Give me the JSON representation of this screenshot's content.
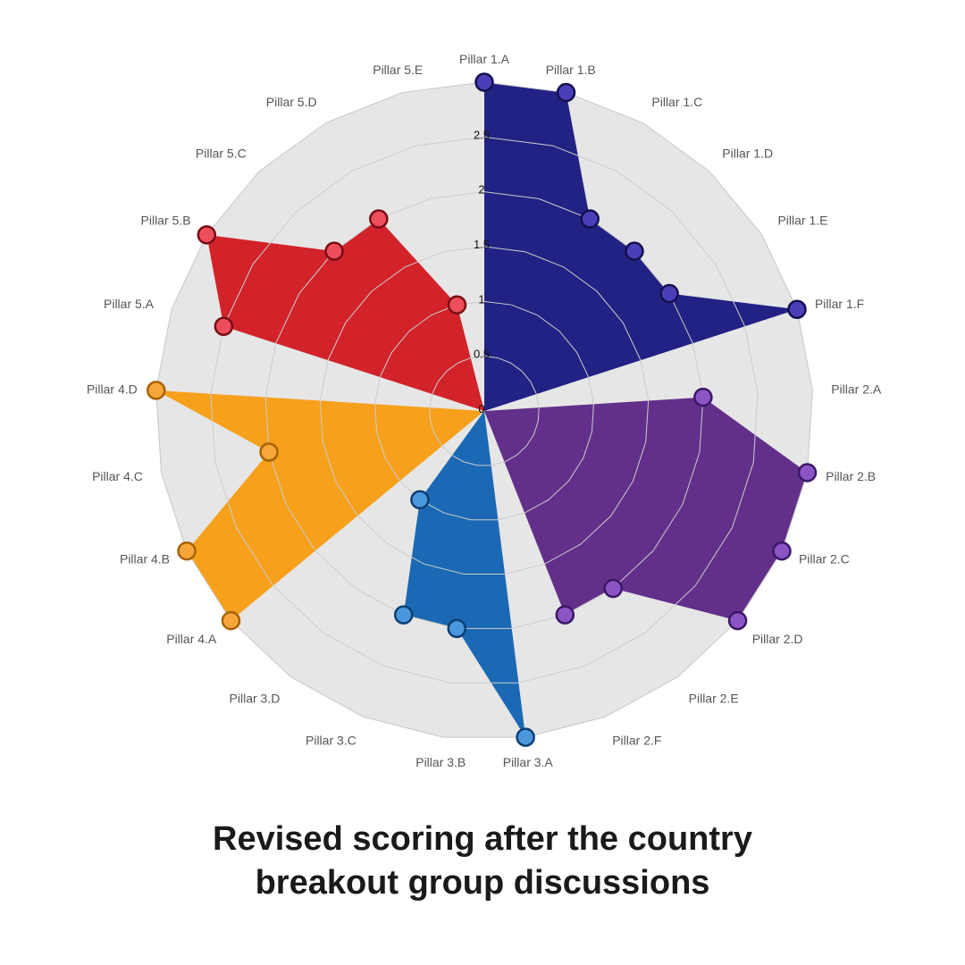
{
  "chart_data": {
    "type": "radar",
    "title": "Revised scoring after the country breakout group discussions",
    "title_lines": [
      "Revised scoring after the country",
      "breakout group discussions"
    ],
    "categories": [
      "Pillar 1.A",
      "Pillar 1.B",
      "Pillar 1.C",
      "Pillar 1.D",
      "Pillar 1.E",
      "Pillar 1.F",
      "Pillar 2.A",
      "Pillar 2.B",
      "Pillar 2.C",
      "Pillar 2.D",
      "Pillar 2.E",
      "Pillar 2.F",
      "Pillar 3.A",
      "Pillar 3.B",
      "Pillar 3.C",
      "Pillar 3.D",
      "Pillar 4.A",
      "Pillar 4.B",
      "Pillar 4.C",
      "Pillar 4.D",
      "Pillar 5.A",
      "Pillar 5.B",
      "Pillar 5.C",
      "Pillar 5.D",
      "Pillar 5.E"
    ],
    "rlim": [
      0,
      3
    ],
    "radial_ticks": [
      0,
      0.5,
      1,
      1.5,
      2,
      2.5
    ],
    "radial_tick_labels": [
      "0",
      "0.5",
      "1",
      "1.5",
      "2",
      "2.5"
    ],
    "grid": true,
    "legend": "none",
    "series": [
      {
        "color": "#222284",
        "marker_fill": "#4a3fb8",
        "marker_edge": "#14104e",
        "points": [
          {
            "category": "Pillar 1.A",
            "value": 3
          },
          {
            "category": "Pillar 1.B",
            "value": 3
          },
          {
            "category": "Pillar 1.C",
            "value": 2
          },
          {
            "category": "Pillar 1.D",
            "value": 2
          },
          {
            "category": "Pillar 1.E",
            "value": 2
          },
          {
            "category": "Pillar 1.F",
            "value": 3
          }
        ]
      },
      {
        "color": "#62308a",
        "marker_fill": "#8b55c6",
        "marker_edge": "#3a1866",
        "points": [
          {
            "category": "Pillar 2.A",
            "value": 2
          },
          {
            "category": "Pillar 2.B",
            "value": 3
          },
          {
            "category": "Pillar 2.C",
            "value": 3
          },
          {
            "category": "Pillar 2.D",
            "value": 3
          },
          {
            "category": "Pillar 2.E",
            "value": 2
          },
          {
            "category": "Pillar 2.F",
            "value": 2
          }
        ]
      },
      {
        "color": "#1b69b4",
        "marker_fill": "#4b97de",
        "marker_edge": "#0e3e72",
        "points": [
          {
            "category": "Pillar 3.A",
            "value": 3
          },
          {
            "category": "Pillar 3.B",
            "value": 2
          },
          {
            "category": "Pillar 3.C",
            "value": 2
          },
          {
            "category": "Pillar 3.D",
            "value": 1
          }
        ]
      },
      {
        "color": "#f6a01c",
        "marker_fill": "#f7a73a",
        "marker_edge": "#a86200",
        "points": [
          {
            "category": "Pillar 4.A",
            "value": 3
          },
          {
            "category": "Pillar 4.B",
            "value": 3
          },
          {
            "category": "Pillar 4.C",
            "value": 2
          },
          {
            "category": "Pillar 4.D",
            "value": 3
          }
        ]
      },
      {
        "color": "#d2232a",
        "marker_fill": "#ec4e5b",
        "marker_edge": "#7a0c14",
        "points": [
          {
            "category": "Pillar 5.A",
            "value": 2.5
          },
          {
            "category": "Pillar 5.B",
            "value": 3
          },
          {
            "category": "Pillar 5.C",
            "value": 2
          },
          {
            "category": "Pillar 5.D",
            "value": 2
          },
          {
            "category": "Pillar 5.E",
            "value": 1
          }
        ]
      }
    ]
  }
}
